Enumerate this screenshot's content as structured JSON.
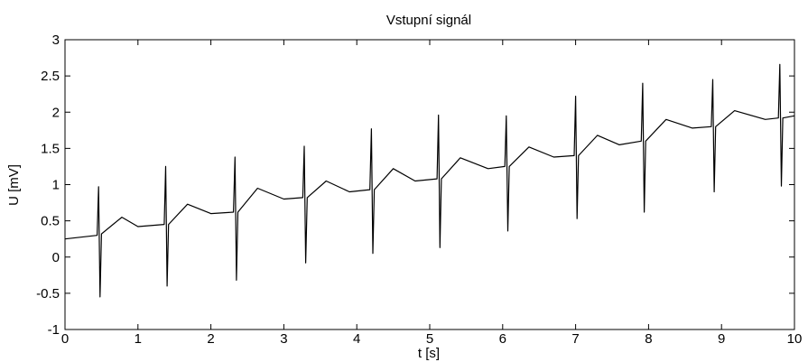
{
  "chart_data": {
    "type": "line",
    "title": "Vstupní signál",
    "xlabel": "t [s]",
    "ylabel": "U [mV]",
    "xlim": [
      0,
      10
    ],
    "ylim": [
      -1,
      3
    ],
    "xticks": [
      0,
      1,
      2,
      3,
      4,
      5,
      6,
      7,
      8,
      9,
      10
    ],
    "yticks": [
      -1,
      -0.5,
      0,
      0.5,
      1,
      1.5,
      2,
      2.5,
      3
    ],
    "grid": false,
    "line_color": "#000000",
    "series": [
      {
        "x": [
          0,
          0.44,
          0.46,
          0.48,
          0.5,
          0.78,
          1.0,
          1.36,
          1.38,
          1.4,
          1.42,
          1.68,
          2.0,
          2.31,
          2.33,
          2.35,
          2.37,
          2.64,
          3.0,
          3.26,
          3.28,
          3.3,
          3.32,
          3.58,
          3.9,
          4.18,
          4.2,
          4.22,
          4.24,
          4.5,
          4.8,
          5.1,
          5.12,
          5.14,
          5.16,
          5.42,
          5.8,
          6.03,
          6.05,
          6.07,
          6.09,
          6.36,
          6.7,
          6.98,
          7.0,
          7.02,
          7.04,
          7.3,
          7.6,
          7.9,
          7.92,
          7.94,
          7.96,
          8.24,
          8.6,
          8.86,
          8.88,
          8.9,
          8.92,
          9.18,
          9.6,
          9.78,
          9.8,
          9.82,
          9.84,
          10.0
        ],
        "y": [
          0.25,
          0.3,
          0.97,
          -0.55,
          0.32,
          0.55,
          0.42,
          0.45,
          1.25,
          -0.4,
          0.45,
          0.73,
          0.6,
          0.62,
          1.38,
          -0.32,
          0.62,
          0.95,
          0.8,
          0.82,
          1.53,
          -0.08,
          0.82,
          1.05,
          0.9,
          0.93,
          1.77,
          0.05,
          0.93,
          1.22,
          1.05,
          1.08,
          1.96,
          0.13,
          1.08,
          1.37,
          1.22,
          1.25,
          1.95,
          0.36,
          1.25,
          1.52,
          1.38,
          1.4,
          2.22,
          0.53,
          1.4,
          1.68,
          1.55,
          1.6,
          2.4,
          0.62,
          1.6,
          1.9,
          1.78,
          1.8,
          2.45,
          0.9,
          1.8,
          2.02,
          1.9,
          1.92,
          2.66,
          0.98,
          1.92,
          1.95
        ]
      }
    ]
  }
}
